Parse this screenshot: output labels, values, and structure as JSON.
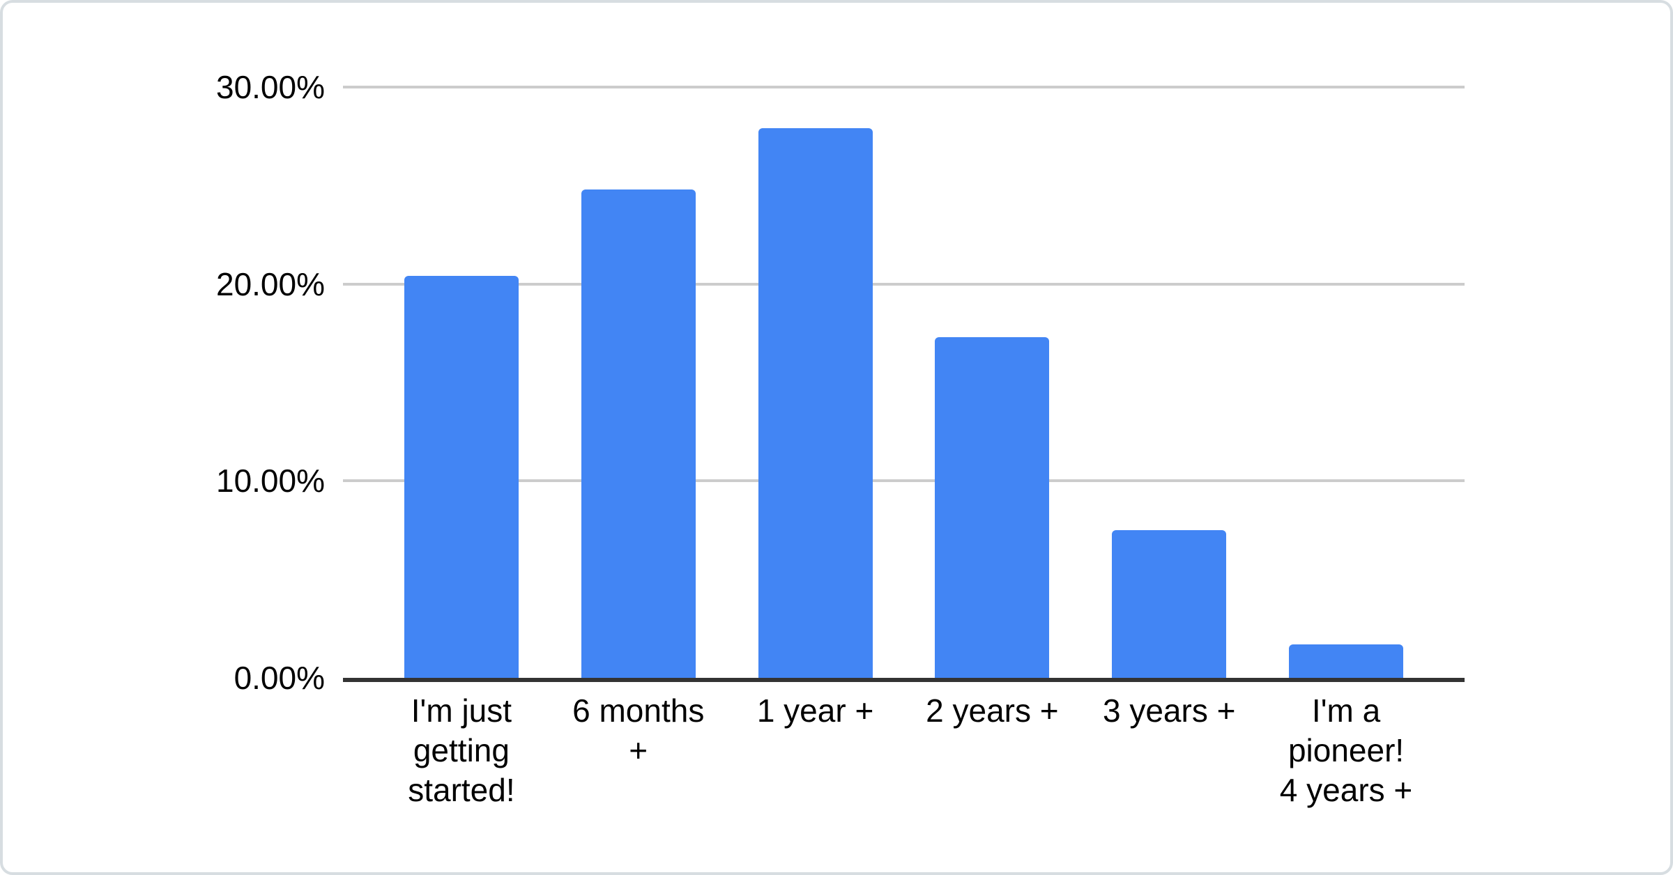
{
  "chart_data": {
    "type": "bar",
    "title": "",
    "xlabel": "",
    "ylabel": "",
    "unit": "%",
    "categories": [
      "I'm just getting started!",
      "6 months +",
      "1 year +",
      "2 years +",
      "3 years +",
      "I'm a pioneer! 4 years +"
    ],
    "xtick_display": [
      "I'm just\ngetting\nstarted!",
      "6 months\n+",
      "1 year +",
      "2 years +",
      "3 years +",
      "I'm a\npioneer!\n4 years +"
    ],
    "values": [
      20.4,
      24.8,
      27.9,
      17.3,
      7.5,
      1.7
    ],
    "ylim": [
      0,
      30
    ],
    "yticks": [
      {
        "value": 0,
        "label": "0.00%"
      },
      {
        "value": 10,
        "label": "10.00%"
      },
      {
        "value": 20,
        "label": "20.00%"
      },
      {
        "value": 30,
        "label": "30.00%"
      }
    ],
    "grid": true,
    "legend": "none"
  },
  "colors": {
    "bar": "#4285f4",
    "gridline": "#cccccc",
    "axis_line": "#333333",
    "label_text": "#000000",
    "card_background": "#ffffff",
    "card_border": "#d7dde1"
  }
}
